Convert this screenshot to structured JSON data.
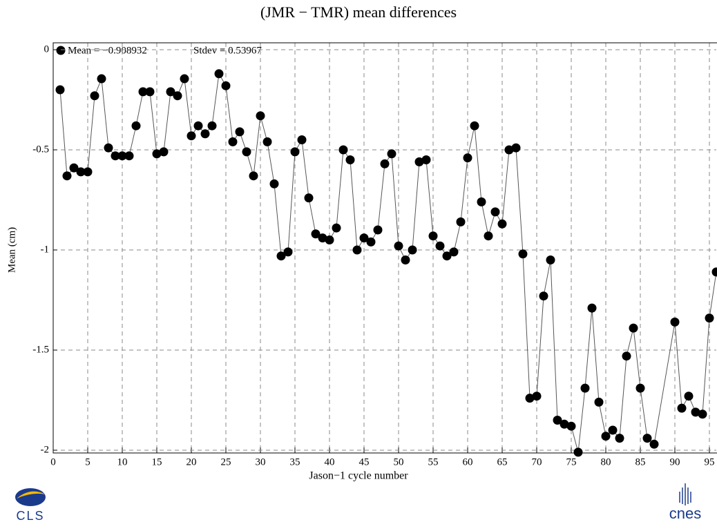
{
  "chart_data": {
    "type": "line",
    "title": "(JMR − TMR) mean differences",
    "xlabel": "Jason−1 cycle number",
    "ylabel": "Mean (cm)",
    "annotations": [
      "Mean = −0.908932",
      "Stdev = 0.53967"
    ],
    "color": "#000000",
    "line_color": "#555555",
    "grid": true,
    "xlim": [
      0,
      96
    ],
    "ylim": [
      -2,
      0
    ],
    "xticks": [
      0,
      5,
      10,
      15,
      20,
      25,
      30,
      35,
      40,
      45,
      50,
      55,
      60,
      65,
      70,
      75,
      80,
      85,
      90,
      95
    ],
    "yticks": [
      0,
      -0.5,
      -1,
      -1.5,
      -2
    ],
    "x": [
      1,
      2,
      3,
      4,
      5,
      6,
      7,
      8,
      9,
      10,
      11,
      12,
      13,
      14,
      15,
      16,
      17,
      18,
      19,
      20,
      21,
      22,
      23,
      24,
      25,
      26,
      27,
      28,
      29,
      30,
      31,
      32,
      33,
      34,
      35,
      36,
      37,
      38,
      39,
      40,
      41,
      42,
      43,
      44,
      45,
      46,
      47,
      48,
      49,
      50,
      51,
      52,
      53,
      54,
      55,
      56,
      57,
      58,
      59,
      60,
      61,
      62,
      63,
      64,
      65,
      66,
      67,
      68,
      69,
      70,
      71,
      72,
      73,
      74,
      75,
      76,
      77,
      78,
      79,
      80,
      81,
      82,
      83,
      84,
      85,
      86,
      87,
      90,
      91,
      92,
      93,
      94,
      95,
      96
    ],
    "values": [
      -0.2,
      -0.63,
      -0.59,
      -0.61,
      -0.61,
      -0.23,
      -0.145,
      -0.49,
      -0.53,
      -0.53,
      -0.53,
      -0.38,
      -0.21,
      -0.21,
      -0.52,
      -0.51,
      -0.21,
      -0.23,
      -0.145,
      -0.43,
      -0.38,
      -0.42,
      -0.38,
      -0.12,
      -0.18,
      -0.46,
      -0.41,
      -0.51,
      -0.63,
      -0.33,
      -0.46,
      -0.67,
      -1.03,
      -1.01,
      -0.51,
      -0.45,
      -0.74,
      -0.92,
      -0.94,
      -0.95,
      -0.89,
      -0.5,
      -0.55,
      -1.0,
      -0.94,
      -0.96,
      -0.9,
      -0.57,
      -0.52,
      -0.98,
      -1.05,
      -1.0,
      -0.56,
      -0.55,
      -0.93,
      -0.98,
      -1.03,
      -1.01,
      -0.86,
      -0.54,
      -0.38,
      -0.76,
      -0.93,
      -0.81,
      -0.87,
      -0.5,
      -0.49,
      -1.02,
      -1.74,
      -1.73,
      -1.23,
      -1.05,
      -1.85,
      -1.87,
      -1.88,
      -2.01,
      -1.69,
      -1.29,
      -1.76,
      -1.93,
      -1.9,
      -1.94,
      -1.53,
      -1.39,
      -1.69,
      -1.94,
      -1.97,
      -1.36,
      -1.79,
      -1.73,
      -1.81,
      -1.82,
      -1.34,
      -1.11
    ]
  },
  "logos": {
    "left": "CLS",
    "right": "cnes"
  }
}
